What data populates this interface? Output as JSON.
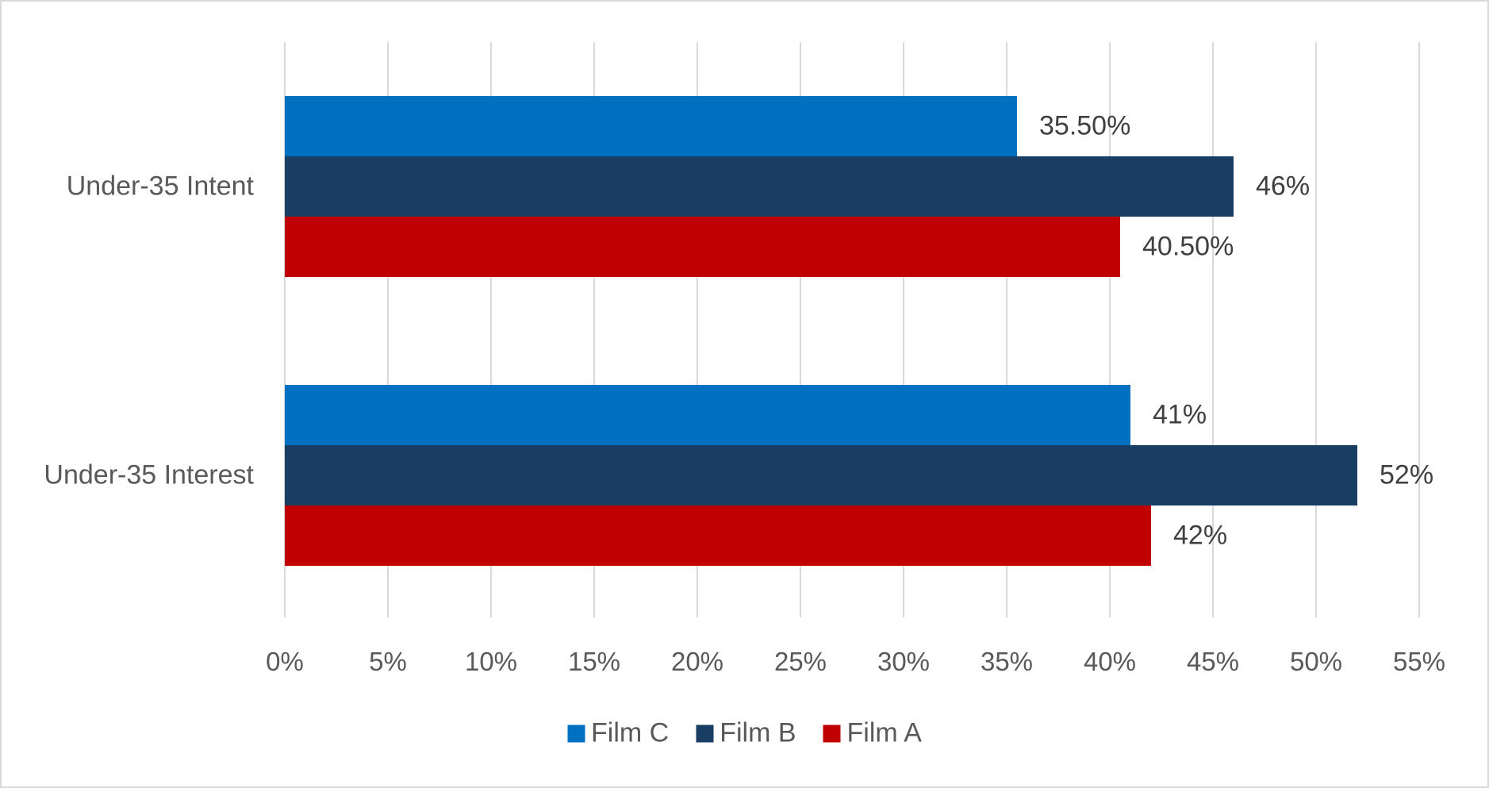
{
  "chart_data": {
    "type": "bar",
    "orientation": "horizontal",
    "title": "",
    "xlabel": "",
    "ylabel": "",
    "categories": [
      "Under-35 Intent",
      "Under-35 Interest"
    ],
    "series": [
      {
        "name": "Film C",
        "color": "#0070c0",
        "values": [
          35.5,
          41
        ],
        "labels": [
          "35.50%",
          "41%"
        ]
      },
      {
        "name": "Film B",
        "color": "#1a3d64",
        "values": [
          46,
          52
        ],
        "labels": [
          "46%",
          "52%"
        ]
      },
      {
        "name": "Film A",
        "color": "#c00000",
        "values": [
          40.5,
          42
        ],
        "labels": [
          "40.50%",
          "42%"
        ]
      }
    ],
    "xlim": [
      0,
      55
    ],
    "x_ticks": [
      "0%",
      "5%",
      "10%",
      "15%",
      "20%",
      "25%",
      "30%",
      "35%",
      "40%",
      "45%",
      "50%",
      "55%"
    ],
    "grid": true,
    "legend_position": "bottom",
    "legend": [
      "Film C",
      "Film B",
      "Film A"
    ]
  }
}
